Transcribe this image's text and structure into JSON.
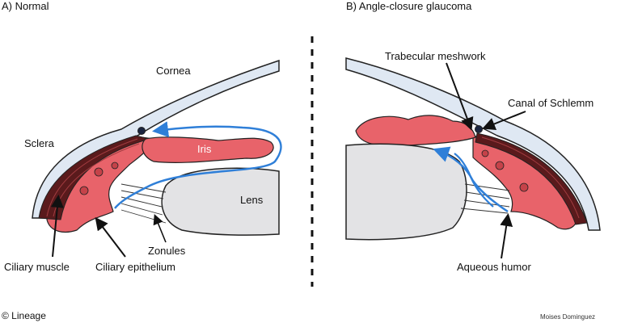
{
  "panels": {
    "normal": {
      "title": "A) Normal",
      "labels": {
        "cornea": "Cornea",
        "sclera": "Sclera",
        "iris": "Iris",
        "lens": "Lens",
        "zonules": "Zonules",
        "ciliary_muscle": "Ciliary muscle",
        "ciliary_epithelium": "Ciliary epithelium"
      }
    },
    "angle_closure": {
      "title": "B) Angle-closure glaucoma",
      "labels": {
        "trabecular_meshwork": "Trabecular meshwork",
        "canal_of_schlemm": "Canal of Schlemm",
        "aqueous_humor": "Aqueous humor"
      }
    }
  },
  "credits": {
    "left": "© Lineage",
    "right": "Moises Dominguez"
  },
  "colors": {
    "cornea": "#dfe8f3",
    "tissue": "#e8636a",
    "muscle": "#5a1a1c",
    "lens": "#e3e3e5",
    "flow": "#2f7fd8",
    "outline": "#222222"
  }
}
